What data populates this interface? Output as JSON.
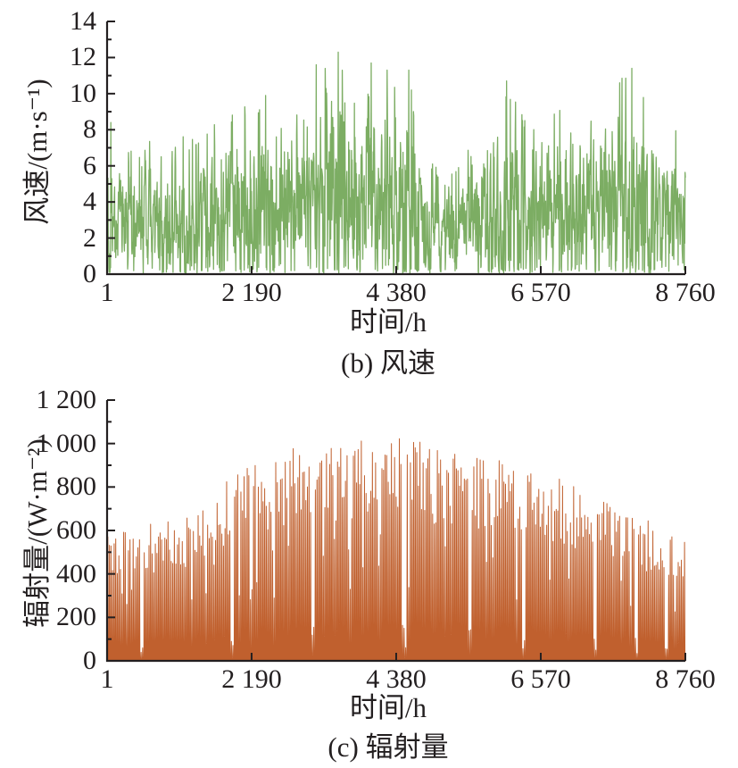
{
  "figure": {
    "background": "#ffffff",
    "axis_color": "#231f20"
  },
  "chart_data": [
    {
      "type": "line",
      "series_name": "风速",
      "caption": "(b) 风速",
      "xlabel": "时间/h",
      "ylabel": "风速/(m·s⁻¹)",
      "color": "#7cad63",
      "x_range": [
        1,
        8760
      ],
      "ylim": [
        0,
        14
      ],
      "y_minor_step": 1,
      "yticks": [
        {
          "v": 0,
          "label": "0"
        },
        {
          "v": 2,
          "label": "2"
        },
        {
          "v": 4,
          "label": "4"
        },
        {
          "v": 6,
          "label": "6"
        },
        {
          "v": 8,
          "label": "8"
        },
        {
          "v": 10,
          "label": "10"
        },
        {
          "v": 12,
          "label": "12"
        },
        {
          "v": 14,
          "label": "14"
        }
      ],
      "xticks": [
        {
          "v": 1,
          "label": "1"
        },
        {
          "v": 2190,
          "label": "2 190"
        },
        {
          "v": 4380,
          "label": "4 380"
        },
        {
          "v": 6570,
          "label": "6 570"
        },
        {
          "v": 8760,
          "label": "8 760"
        }
      ],
      "sample_count": 2000,
      "seed": 1337,
      "envelope_mean": [
        [
          1,
          3.2
        ],
        [
          1200,
          3.1
        ],
        [
          2000,
          3.6
        ],
        [
          3000,
          4.6
        ],
        [
          3800,
          4.8
        ],
        [
          4300,
          4.4
        ],
        [
          4800,
          2.9
        ],
        [
          5400,
          3.2
        ],
        [
          6500,
          3.5
        ],
        [
          7800,
          4.2
        ],
        [
          8760,
          3.0
        ]
      ],
      "envelope_max": [
        [
          1,
          8.5
        ],
        [
          400,
          7.2
        ],
        [
          850,
          7.6
        ],
        [
          1400,
          8.0
        ],
        [
          2000,
          9.4
        ],
        [
          2400,
          9.9
        ],
        [
          2900,
          10.4
        ],
        [
          3170,
          11.6
        ],
        [
          3500,
          12.3
        ],
        [
          4000,
          11.8
        ],
        [
          4570,
          11.3
        ],
        [
          4800,
          6.5
        ],
        [
          5400,
          6.6
        ],
        [
          6050,
          10.7
        ],
        [
          6300,
          8.8
        ],
        [
          6900,
          9.3
        ],
        [
          7300,
          9.9
        ],
        [
          7950,
          11.4
        ],
        [
          8300,
          9.5
        ],
        [
          8760,
          7.6
        ]
      ],
      "forced_peaks": [
        [
          60,
          8.4
        ],
        [
          2400,
          9.9
        ],
        [
          3170,
          11.6
        ],
        [
          3500,
          12.3
        ],
        [
          4000,
          11.7
        ],
        [
          4570,
          11.3
        ],
        [
          6050,
          10.7
        ],
        [
          7950,
          11.4
        ]
      ]
    },
    {
      "type": "line-spikes",
      "series_name": "辐射量",
      "caption": "(c) 辐射量",
      "xlabel": "时间/h",
      "ylabel": "辐射量/(W·m⁻²)",
      "color": "#c0602e",
      "x_range": [
        1,
        8760
      ],
      "ylim": [
        0,
        1200
      ],
      "y_minor_step": 100,
      "yticks": [
        {
          "v": 0,
          "label": "0"
        },
        {
          "v": 200,
          "label": "200"
        },
        {
          "v": 400,
          "label": "400"
        },
        {
          "v": 600,
          "label": "600"
        },
        {
          "v": 800,
          "label": "800"
        },
        {
          "v": 1000,
          "label": "1 000"
        },
        {
          "v": 1200,
          "label": "1 200"
        }
      ],
      "xticks": [
        {
          "v": 1,
          "label": "1"
        },
        {
          "v": 2190,
          "label": "2 190"
        },
        {
          "v": 4380,
          "label": "4 380"
        },
        {
          "v": 6570,
          "label": "6 570"
        },
        {
          "v": 8760,
          "label": "8 760"
        }
      ],
      "days": 365,
      "seed": 2024,
      "cloudy_fraction": 0.12,
      "envelope_max": [
        [
          1,
          600
        ],
        [
          500,
          625
        ],
        [
          1000,
          665
        ],
        [
          1500,
          760
        ],
        [
          2000,
          870
        ],
        [
          2500,
          950
        ],
        [
          3000,
          1005
        ],
        [
          3600,
          1030
        ],
        [
          4100,
          1035
        ],
        [
          4600,
          1020
        ],
        [
          5000,
          985
        ],
        [
          5500,
          960
        ],
        [
          6000,
          935
        ],
        [
          6570,
          880
        ],
        [
          7000,
          820
        ],
        [
          7500,
          755
        ],
        [
          8000,
          680
        ],
        [
          8400,
          610
        ],
        [
          8760,
          585
        ]
      ],
      "gap_days": [
        [
          21,
          22
        ],
        [
          78,
          79
        ],
        [
          129,
          130
        ],
        [
          186,
          188
        ],
        [
          228,
          229
        ],
        [
          262,
          263
        ],
        [
          307,
          308
        ],
        [
          333,
          334
        ],
        [
          352,
          353
        ]
      ]
    }
  ]
}
